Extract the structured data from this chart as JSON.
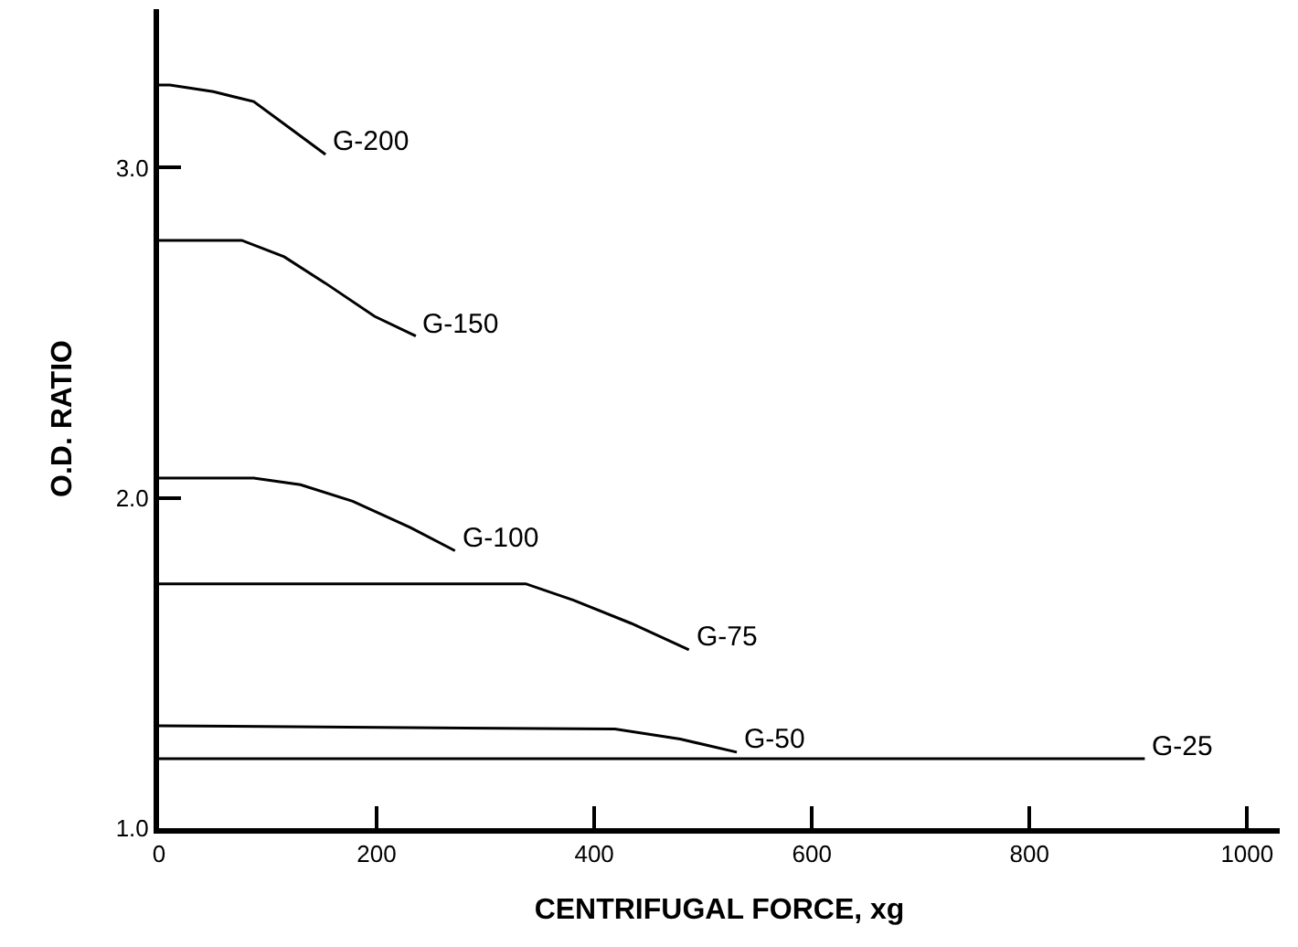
{
  "chart_data": {
    "type": "line",
    "xlabel": "CENTRIFUGAL FORCE, xg",
    "ylabel": "O.D. RATIO",
    "xlim": [
      0,
      1030
    ],
    "ylim": [
      1.0,
      3.48
    ],
    "xticks": [
      0,
      200,
      400,
      600,
      800,
      1000
    ],
    "yticks": [
      {
        "value": 1.0,
        "label": "1.0"
      },
      {
        "value": 2.0,
        "label": "2.0"
      },
      {
        "value": 3.0,
        "label": "3.0"
      }
    ],
    "legend": false,
    "marker": "none",
    "line_style": "solid",
    "series": [
      {
        "name": "G-200",
        "color": "#000000",
        "x": [
          0,
          10,
          50,
          87,
          120,
          153
        ],
        "values": [
          3.25,
          3.25,
          3.23,
          3.2,
          3.12,
          3.04
        ]
      },
      {
        "name": "G-150",
        "color": "#000000",
        "x": [
          0,
          76,
          115,
          153,
          198,
          236
        ],
        "values": [
          2.78,
          2.78,
          2.73,
          2.65,
          2.55,
          2.49
        ]
      },
      {
        "name": "G-100",
        "color": "#000000",
        "x": [
          0,
          87,
          130,
          178,
          231,
          272
        ],
        "values": [
          2.06,
          2.06,
          2.04,
          1.99,
          1.91,
          1.84
        ]
      },
      {
        "name": "G-75",
        "color": "#000000",
        "x": [
          0,
          337,
          381,
          434,
          487
        ],
        "values": [
          1.74,
          1.74,
          1.69,
          1.62,
          1.54
        ]
      },
      {
        "name": "G-50",
        "color": "#000000",
        "x": [
          0,
          419,
          479,
          531
        ],
        "values": [
          1.31,
          1.3,
          1.27,
          1.23
        ]
      },
      {
        "name": "G-25",
        "color": "#000000",
        "x": [
          0,
          906
        ],
        "values": [
          1.21,
          1.21
        ]
      }
    ]
  }
}
